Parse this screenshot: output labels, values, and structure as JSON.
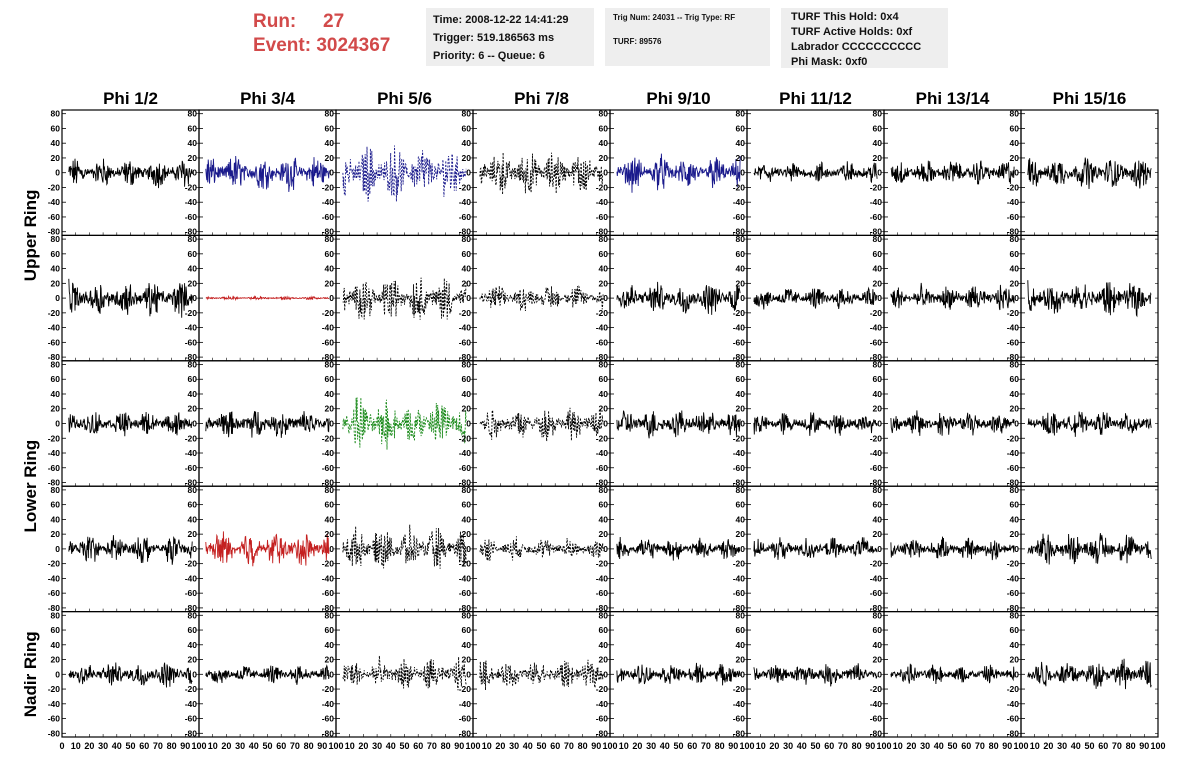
{
  "header": {
    "run_label": "Run:",
    "run_value": "27",
    "event_label": "Event:",
    "event_value": "3024367",
    "time": "Time: 2008-12-22 14:41:29",
    "trigger": "Trigger: 519.186563 ms",
    "priority": "Priority: 6 -- Queue: 6",
    "trig_num": "Trig Num: 24031 -- Trig Type: RF",
    "turf": "TURF: 89576",
    "turf_this_hold": "TURF This Hold: 0x4",
    "turf_active_holds": "TURF Active Holds: 0xf",
    "labrador": "Labrador CCCCCCCCCC",
    "phi_mask": "Phi Mask: 0xf0",
    "run_color": "#d24a4a"
  },
  "chart_data": {
    "type": "line",
    "columns": [
      "Phi 1/2",
      "Phi 3/4",
      "Phi 5/6",
      "Phi 7/8",
      "Phi 9/10",
      "Phi 11/12",
      "Phi 13/14",
      "Phi 15/16"
    ],
    "ring_labels": [
      {
        "text": "Upper Ring",
        "rows": [
          0,
          1
        ]
      },
      {
        "text": "Lower Ring",
        "rows": [
          2,
          3
        ]
      },
      {
        "text": "Nadir Ring",
        "rows": [
          4
        ]
      }
    ],
    "xlim": [
      0,
      100
    ],
    "ylim": [
      -85,
      85
    ],
    "xticks": [
      0,
      10,
      20,
      30,
      40,
      50,
      60,
      70,
      80,
      90,
      100
    ],
    "yticks": [
      -80,
      -60,
      -40,
      -20,
      0,
      20,
      40,
      60,
      80
    ],
    "colors": {
      "blue": "#1a1a8c",
      "red": "#c42020",
      "green": "#1a8a1a",
      "black": "#000000"
    },
    "panel_styles": [
      [
        "solid:black",
        "solid:blue",
        "dashed:blue",
        "dashed:black",
        "solid:blue",
        "solid:black",
        "solid:black",
        "solid:black"
      ],
      [
        "solid:black",
        "solid:red",
        "dashed:black",
        "dashed:black",
        "solid:black",
        "solid:black",
        "solid:black",
        "solid:black"
      ],
      [
        "solid:black",
        "solid:black",
        "dashed:green",
        "dashed:black",
        "solid:black",
        "solid:black",
        "solid:black",
        "solid:black"
      ],
      [
        "solid:black",
        "solid:red",
        "dashed:black",
        "dashed:black",
        "solid:black",
        "solid:black",
        "solid:black",
        "solid:black"
      ],
      [
        "solid:black",
        "solid:black",
        "dashed:black",
        "dashed:black",
        "solid:black",
        "solid:black",
        "solid:black",
        "solid:black"
      ]
    ],
    "panel_amplitude": [
      [
        18,
        22,
        34,
        28,
        22,
        14,
        16,
        20
      ],
      [
        22,
        2,
        28,
        16,
        20,
        14,
        16,
        22
      ],
      [
        16,
        18,
        32,
        20,
        18,
        14,
        16,
        16
      ],
      [
        18,
        22,
        26,
        14,
        14,
        14,
        14,
        20
      ],
      [
        16,
        12,
        20,
        18,
        14,
        14,
        12,
        18
      ]
    ]
  }
}
